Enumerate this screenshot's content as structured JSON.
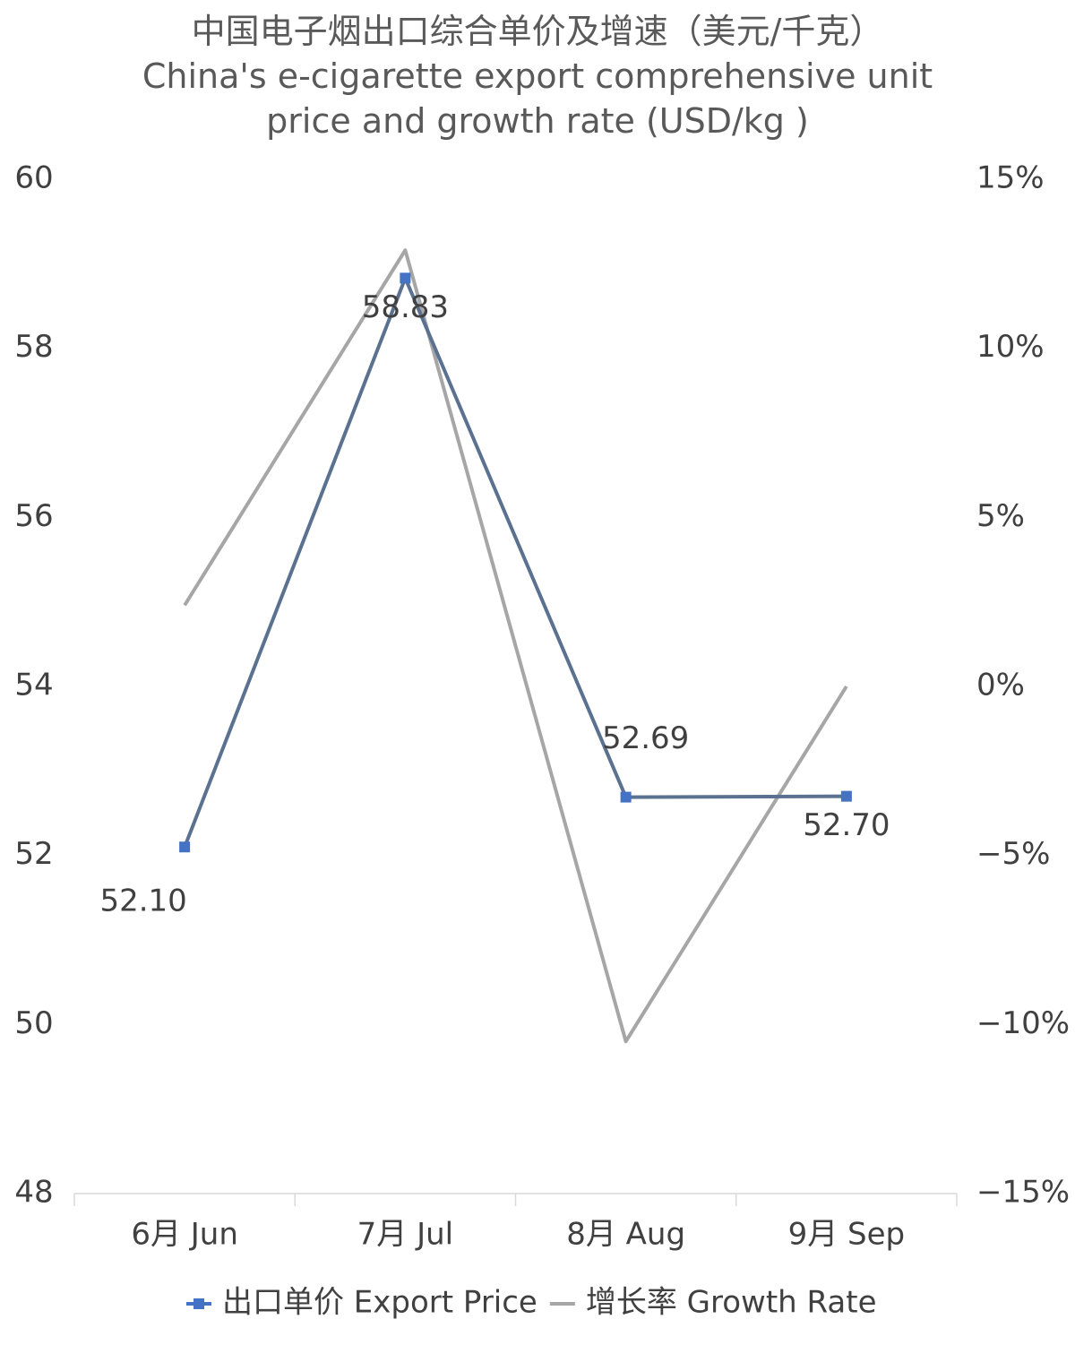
{
  "chart_data": {
    "type": "line",
    "title": "中国电子烟出口综合单价及增速（美元/千克）",
    "subtitle": "China's e-cigarette export comprehensive unit price and growth rate (USD/kg )",
    "categories": [
      "6月 Jun",
      "7月 Jul",
      "8月 Aug",
      "9月 Sep"
    ],
    "series": [
      {
        "name": "出口单价 Export Price",
        "color": "#5b7190",
        "marker_color": "#4472c4",
        "marker": "square",
        "values": [
          52.1,
          58.83,
          52.69,
          52.7
        ],
        "value_labels": [
          "52.10",
          "58.83",
          "52.69",
          "52.70"
        ]
      },
      {
        "name": "增长率 Growth Rate",
        "color": "#a6a6a6",
        "axis": "y2",
        "values": [
          2.4,
          12.9,
          -10.5,
          0
        ]
      }
    ],
    "ylim": [
      48,
      60
    ],
    "yticks": [
      48,
      50,
      52,
      54,
      56,
      58,
      60
    ],
    "y2lim": [
      -15,
      15
    ],
    "y2ticks": [
      {
        "value": -15,
        "label": "−15%"
      },
      {
        "value": -10,
        "label": "−10%"
      },
      {
        "value": -5,
        "label": "−5%"
      },
      {
        "value": 0,
        "label": "0%"
      },
      {
        "value": 5,
        "label": "5%"
      },
      {
        "value": 10,
        "label": "10%"
      },
      {
        "value": 15,
        "label": "15%"
      }
    ],
    "grid": false,
    "legend": "bottom"
  }
}
